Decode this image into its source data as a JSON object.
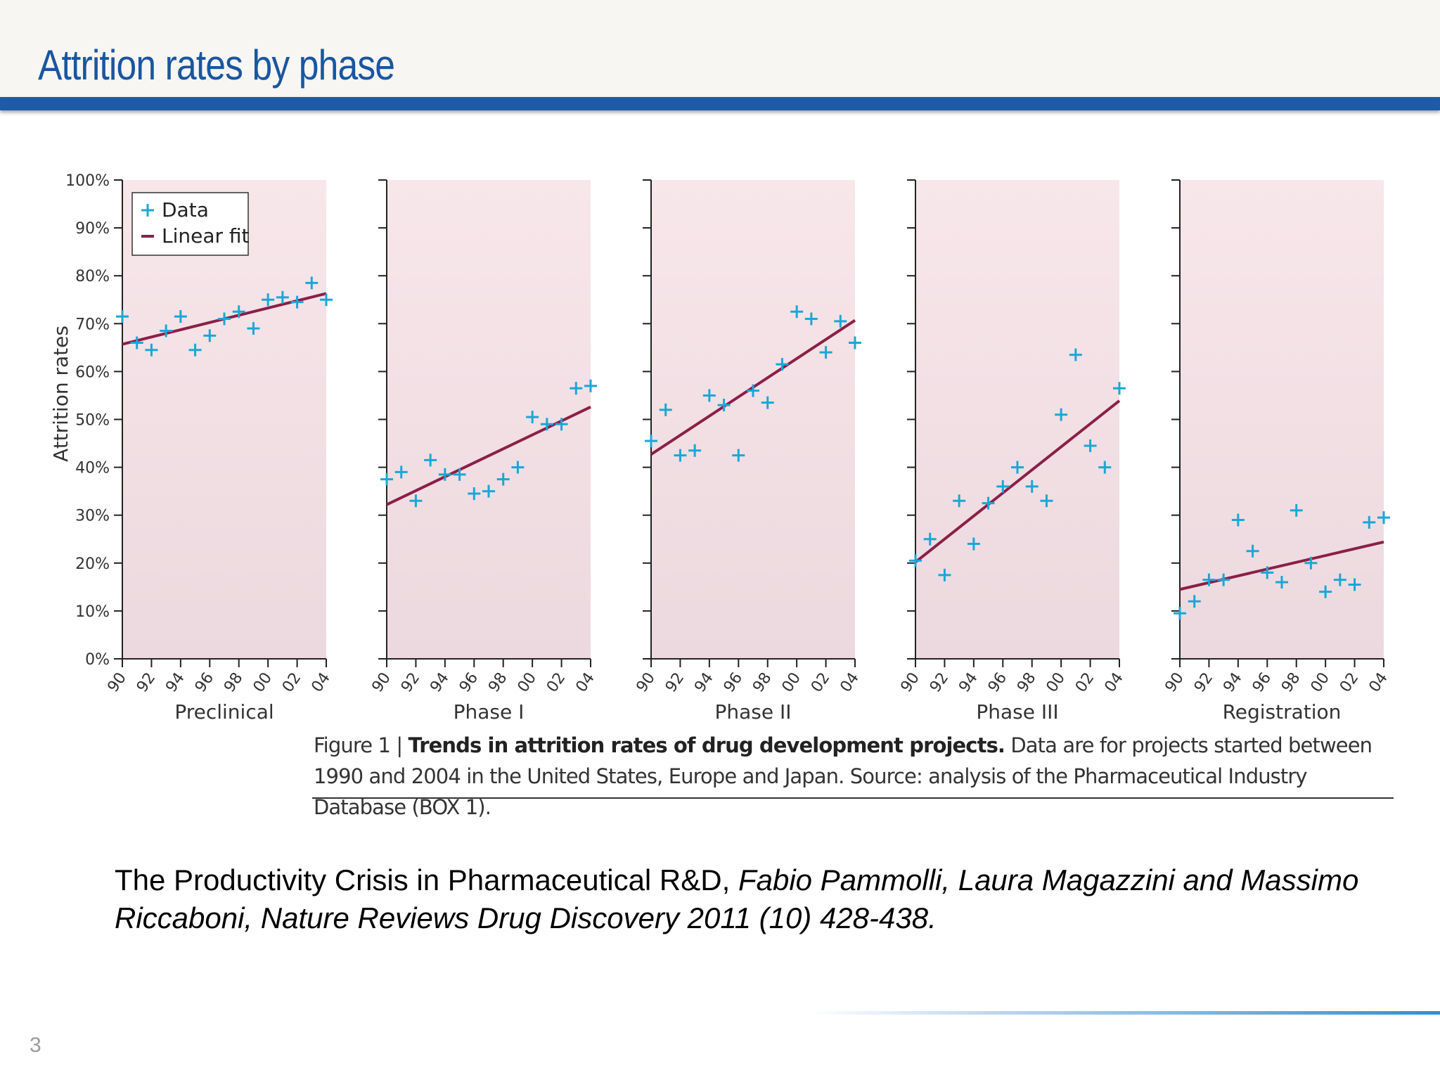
{
  "slide": {
    "title": "Attrition rates by phase",
    "page_number": "3"
  },
  "caption": {
    "figure_label": "Figure 1 | ",
    "bold_text": "Trends in attrition rates of drug development projects.",
    "text": " Data are for projects started between 1990 and 2004 in the United States, Europe and Japan. Source: analysis of the Pharmaceutical Industry Database (BOX 1)."
  },
  "citation": {
    "plain": "The Productivity Crisis in Pharmaceutical R&D,  ",
    "italic": "Fabio Pammolli, Laura Magazzini and Massimo Riccaboni, Nature Reviews Drug Discovery 2011 (10) 428-438."
  },
  "colors": {
    "title": "#1a56a0",
    "header_bar": "#1f5aa6",
    "data_marker": "#1aa7d6",
    "fit_line": "#8b1f47",
    "panel_bg_top": "#f7e6ea",
    "panel_bg_bottom": "#ecd9df"
  },
  "chart_data": {
    "type": "scatter",
    "ylabel": "Attrition rates",
    "ylim": [
      0,
      100
    ],
    "y_ticks": [
      0,
      10,
      20,
      30,
      40,
      50,
      60,
      70,
      80,
      90,
      100
    ],
    "y_tick_labels": [
      "0%",
      "10%",
      "20%",
      "30%",
      "40%",
      "50%",
      "60%",
      "70%",
      "80%",
      "90%",
      "100%"
    ],
    "x_ticks": [
      1990,
      1992,
      1994,
      1996,
      1998,
      2000,
      2002,
      2004
    ],
    "x_tick_labels": [
      "90",
      "92",
      "94",
      "96",
      "98",
      "00",
      "02",
      "04"
    ],
    "xlim": [
      1990,
      2004
    ],
    "legend": {
      "entries": [
        "Data",
        "Linear fit"
      ],
      "position": "top-left"
    },
    "panels": [
      {
        "name": "Preclinical",
        "x": [
          1990,
          1991,
          1992,
          1993,
          1994,
          1995,
          1996,
          1997,
          1998,
          1999,
          2000,
          2001,
          2002,
          2003,
          2004
        ],
        "data": [
          71.5,
          66,
          64.5,
          68.5,
          71.5,
          64.5,
          67.5,
          71,
          72.5,
          69,
          75,
          75.5,
          74.5,
          78.5,
          75
        ],
        "fit": [
          65.7,
          76.3
        ]
      },
      {
        "name": "Phase I",
        "x": [
          1990,
          1991,
          1992,
          1993,
          1994,
          1995,
          1996,
          1997,
          1998,
          1999,
          2000,
          2001,
          2002,
          2003,
          2004
        ],
        "data": [
          37.5,
          39,
          33,
          41.5,
          38.5,
          38.5,
          34.5,
          35,
          37.5,
          40,
          50.5,
          49,
          49,
          56.5,
          57
        ],
        "fit": [
          32.2,
          52.6
        ]
      },
      {
        "name": "Phase II",
        "x": [
          1990,
          1991,
          1992,
          1993,
          1994,
          1995,
          1996,
          1997,
          1998,
          1999,
          2000,
          2001,
          2002,
          2003,
          2004
        ],
        "data": [
          45.5,
          52,
          42.5,
          43.5,
          55,
          53,
          42.5,
          56,
          53.5,
          61.5,
          72.5,
          71,
          64,
          70.5,
          66
        ],
        "fit": [
          42.7,
          70.7
        ]
      },
      {
        "name": "Phase III",
        "x": [
          1990,
          1991,
          1992,
          1993,
          1994,
          1995,
          1996,
          1997,
          1998,
          1999,
          2000,
          2001,
          2002,
          2003,
          2004
        ],
        "data": [
          20.5,
          25,
          17.5,
          33,
          24,
          32.5,
          36,
          40,
          36,
          33,
          51,
          63.5,
          44.5,
          40,
          56.5
        ],
        "fit": [
          20.2,
          53.9
        ]
      },
      {
        "name": "Registration",
        "x": [
          1990,
          1991,
          1992,
          1993,
          1994,
          1995,
          1996,
          1997,
          1998,
          1999,
          2000,
          2001,
          2002,
          2003,
          2004
        ],
        "data": [
          9.5,
          12,
          16.5,
          16.5,
          29,
          22.5,
          18,
          16,
          31,
          20,
          14,
          16.5,
          15.5,
          28.5,
          29.5
        ],
        "fit": [
          14.5,
          24.4
        ]
      }
    ]
  }
}
